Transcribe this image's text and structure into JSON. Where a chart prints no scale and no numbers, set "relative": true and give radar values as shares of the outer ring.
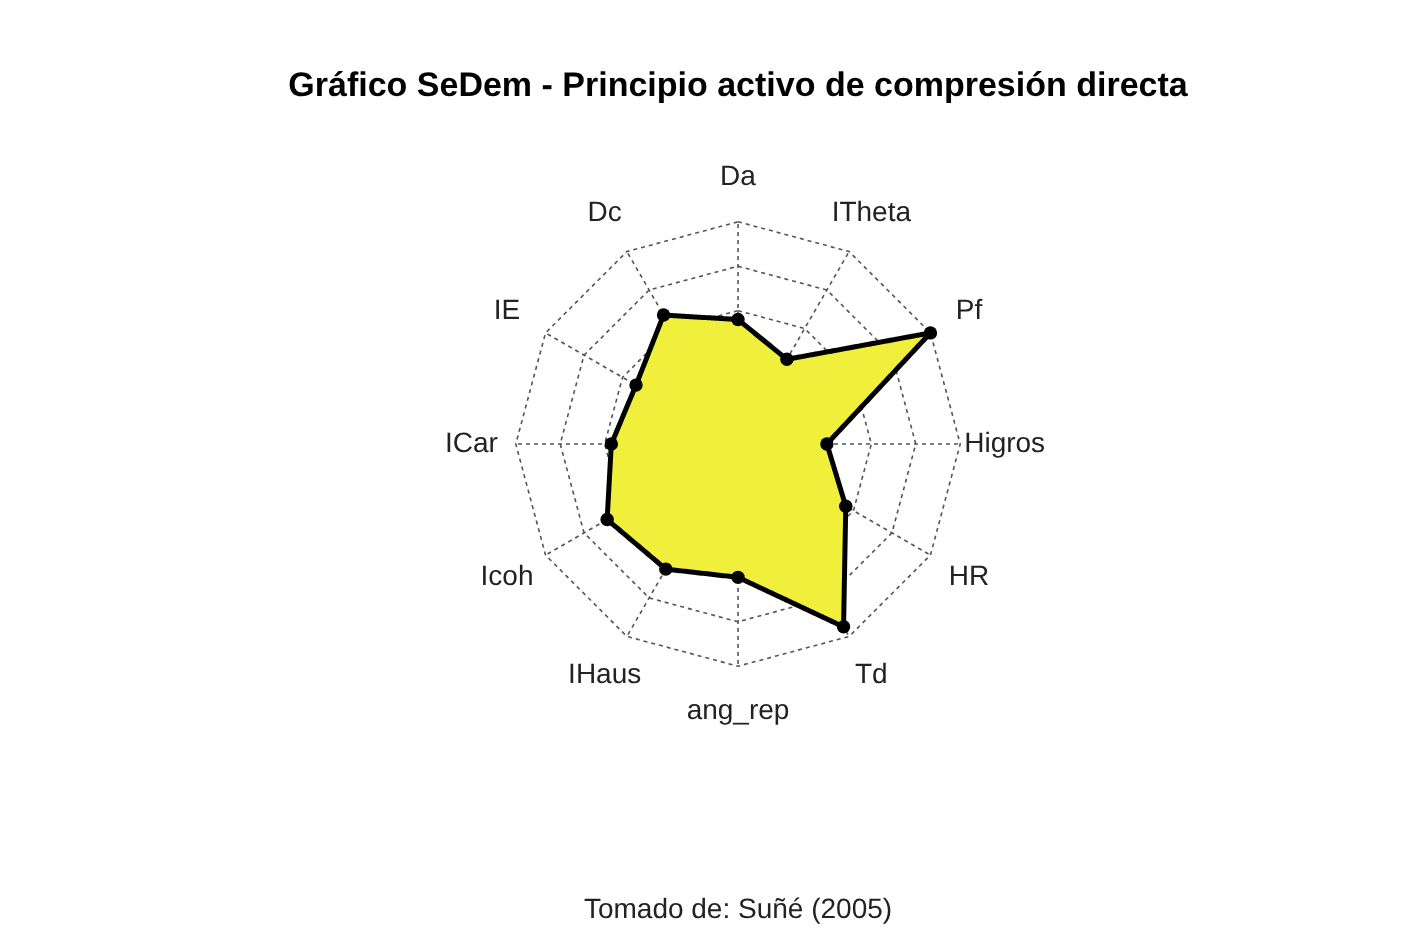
{
  "chart_data": {
    "type": "radar",
    "title": "Gráfico SeDem - Principio activo de compresión directa",
    "categories": [
      "Da",
      "ITheta",
      "Pf",
      "Higros",
      "HR",
      "Td",
      "ang_rep",
      "IHaus",
      "Icoh",
      "ICar",
      "IE",
      "Dc"
    ],
    "relative": true,
    "marker": "circle",
    "line_style": "solid",
    "series": [
      {
        "color": "#f0f03c",
        "values": [
          0.56,
          0.44,
          1.0,
          0.4,
          0.56,
          0.95,
          0.6,
          0.65,
          0.68,
          0.57,
          0.53,
          0.67
        ]
      }
    ],
    "annotations": [
      "Tomado de: Suñé (2005)"
    ]
  }
}
